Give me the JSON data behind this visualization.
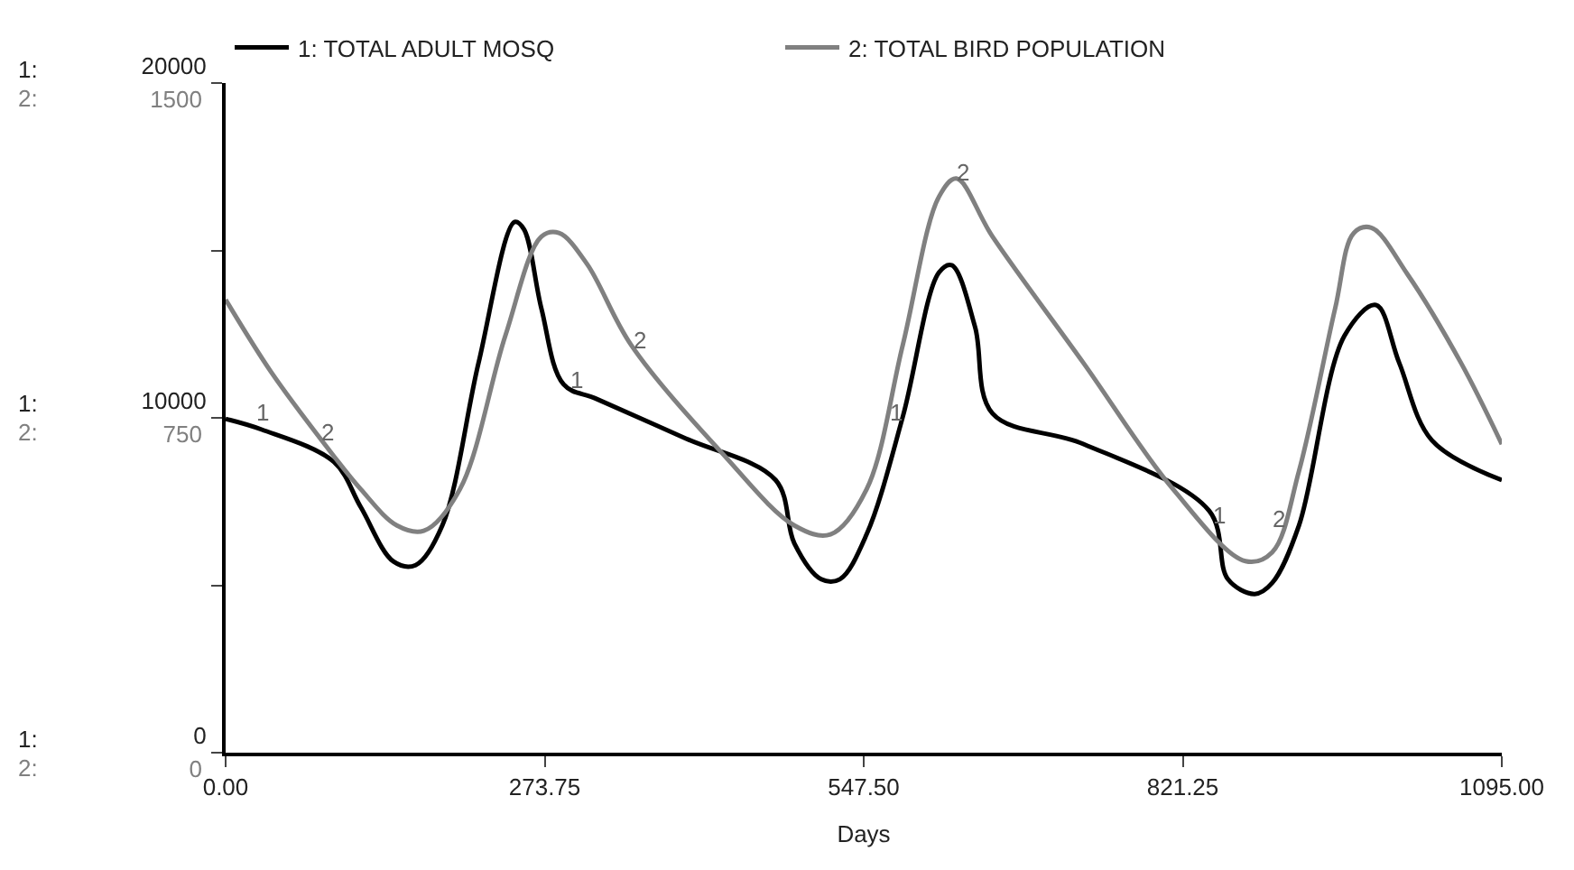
{
  "chart_data": {
    "type": "line",
    "xlabel": "Days",
    "x": [
      0,
      31,
      93,
      116,
      144,
      163,
      186,
      217,
      248,
      256,
      271,
      290,
      318,
      395,
      472,
      488,
      511,
      527,
      550,
      581,
      612,
      623,
      643,
      658,
      736,
      844,
      860,
      883,
      898,
      921,
      960,
      987,
      1007,
      1035,
      1095
    ],
    "series": [
      {
        "name": "1: TOTAL ADULT MOSQ",
        "color": "#000000",
        "values": [
          9970,
          9650,
          8680,
          7330,
          5710,
          5600,
          6790,
          11640,
          15850,
          15630,
          13260,
          11000,
          10570,
          9380,
          8140,
          6250,
          5180,
          5180,
          6520,
          10030,
          14340,
          14560,
          12720,
          10130,
          9220,
          7220,
          5180,
          4740,
          5070,
          6790,
          12450,
          13370,
          11640,
          9330,
          8140
        ]
      },
      {
        "name": "2: TOTAL BIRD POPULATION",
        "color": "#808080",
        "axis": "y2",
        "x": [
          0,
          39,
          85,
          116,
          147,
          170,
          201,
          240,
          271,
          286,
          310,
          348,
          426,
          488,
          519,
          550,
          581,
          612,
          627,
          658,
          736,
          813,
          875,
          898,
          921,
          952,
          968,
          983,
          1014,
          1060,
          1095
        ],
        "values": [
          1015,
          853,
          691,
          590,
          509,
          497,
          590,
          934,
          1156,
          1164,
          1095,
          913,
          671,
          509,
          489,
          590,
          913,
          1245,
          1286,
          1156,
          873,
          590,
          429,
          449,
          631,
          995,
          1164,
          1176,
          1072,
          873,
          691
        ]
      }
    ],
    "xlim": [
      0,
      1095
    ],
    "xticks": [
      {
        "value": 0,
        "label": "0.00"
      },
      {
        "value": 273.75,
        "label": "273.75"
      },
      {
        "value": 547.5,
        "label": "547.50"
      },
      {
        "value": 821.25,
        "label": "821.25"
      },
      {
        "value": 1095,
        "label": "1095.00"
      }
    ],
    "ylim": [
      0,
      20000
    ],
    "yticks": [
      0,
      {
        "value": 5000,
        "label": null
      },
      10000,
      {
        "value": 15000,
        "label": null
      },
      20000
    ],
    "y2lim": [
      0,
      1500
    ],
    "y2ticks": [
      0,
      750,
      1500
    ],
    "annotations": [
      "1:",
      "2:",
      "1:",
      "2:",
      "1:",
      "2:",
      {
        "text": "1",
        "x": 31,
        "y": 9650
      },
      {
        "text": "1",
        "x": 302,
        "y": 10670
      },
      {
        "text": "1",
        "x": 576,
        "y": 9650
      },
      {
        "text": "1",
        "x": 852,
        "y": 6630
      },
      {
        "text": "2",
        "x": 88,
        "y": 9110
      },
      {
        "text": "2",
        "x": 356,
        "y": 11840
      },
      {
        "text": "2",
        "x": 632,
        "y": 16870
      },
      {
        "text": "2",
        "x": 903,
        "y": 6520
      }
    ],
    "legend": "top",
    "marker": "none",
    "line_style": "solid"
  }
}
